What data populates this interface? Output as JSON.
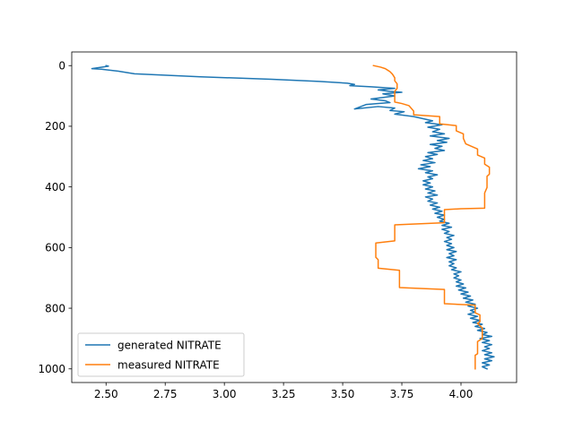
{
  "chart_data": {
    "type": "line",
    "title": "",
    "xlabel": "",
    "ylabel": "",
    "xlim": [
      2.355,
      4.235
    ],
    "ylim": [
      1045,
      -45
    ],
    "y_inverted": true,
    "grid": false,
    "legend_location": "lower-left",
    "x_ticks": [
      2.5,
      2.75,
      3.0,
      3.25,
      3.5,
      3.75,
      4.0
    ],
    "x_tick_labels": [
      "2.50",
      "2.75",
      "3.00",
      "3.25",
      "3.50",
      "3.75",
      "4.00"
    ],
    "y_ticks": [
      0,
      200,
      400,
      600,
      800,
      1000
    ],
    "y_tick_labels": [
      "0",
      "200",
      "400",
      "600",
      "800",
      "1000"
    ],
    "series": [
      {
        "name": "generated NITRATE",
        "color": "#1f77b4",
        "points": [
          [
            2.5,
            0
          ],
          [
            2.51,
            2
          ],
          [
            2.44,
            10
          ],
          [
            2.48,
            12
          ],
          [
            2.55,
            18
          ],
          [
            2.62,
            27
          ],
          [
            2.9,
            37
          ],
          [
            3.2,
            45
          ],
          [
            3.4,
            52
          ],
          [
            3.52,
            58
          ],
          [
            3.55,
            62
          ],
          [
            3.53,
            66
          ],
          [
            3.62,
            70
          ],
          [
            3.72,
            75
          ],
          [
            3.65,
            80
          ],
          [
            3.7,
            85
          ],
          [
            3.75,
            88
          ],
          [
            3.67,
            93
          ],
          [
            3.72,
            100
          ],
          [
            3.62,
            110
          ],
          [
            3.68,
            116
          ],
          [
            3.7,
            122
          ],
          [
            3.6,
            128
          ],
          [
            3.55,
            143
          ],
          [
            3.65,
            135
          ],
          [
            3.72,
            140
          ],
          [
            3.7,
            148
          ],
          [
            3.76,
            152
          ],
          [
            3.72,
            160
          ],
          [
            3.8,
            168
          ],
          [
            3.84,
            175
          ],
          [
            3.88,
            182
          ],
          [
            3.85,
            188
          ],
          [
            3.92,
            195
          ],
          [
            3.86,
            203
          ],
          [
            3.91,
            210
          ],
          [
            3.88,
            218
          ],
          [
            3.93,
            225
          ],
          [
            3.87,
            232
          ],
          [
            3.95,
            240
          ],
          [
            3.9,
            247
          ],
          [
            3.94,
            253
          ],
          [
            3.87,
            260
          ],
          [
            3.92,
            266
          ],
          [
            3.89,
            273
          ],
          [
            3.93,
            280
          ],
          [
            3.86,
            287
          ],
          [
            3.9,
            293
          ],
          [
            3.85,
            300
          ],
          [
            3.88,
            307
          ],
          [
            3.84,
            313
          ],
          [
            3.89,
            320
          ],
          [
            3.83,
            327
          ],
          [
            3.87,
            333
          ],
          [
            3.82,
            340
          ],
          [
            3.88,
            347
          ],
          [
            3.85,
            353
          ],
          [
            3.9,
            360
          ],
          [
            3.86,
            367
          ],
          [
            3.88,
            373
          ],
          [
            3.84,
            380
          ],
          [
            3.87,
            387
          ],
          [
            3.84,
            393
          ],
          [
            3.88,
            400
          ],
          [
            3.85,
            407
          ],
          [
            3.89,
            413
          ],
          [
            3.86,
            420
          ],
          [
            3.9,
            427
          ],
          [
            3.85,
            433
          ],
          [
            3.88,
            440
          ],
          [
            3.86,
            447
          ],
          [
            3.9,
            453
          ],
          [
            3.87,
            460
          ],
          [
            3.91,
            467
          ],
          [
            3.88,
            473
          ],
          [
            3.92,
            480
          ],
          [
            3.89,
            487
          ],
          [
            3.93,
            493
          ],
          [
            3.9,
            500
          ],
          [
            3.93,
            507
          ],
          [
            3.91,
            513
          ],
          [
            3.95,
            520
          ],
          [
            3.92,
            527
          ],
          [
            3.96,
            533
          ],
          [
            3.92,
            540
          ],
          [
            3.95,
            547
          ],
          [
            3.93,
            553
          ],
          [
            3.97,
            560
          ],
          [
            3.94,
            567
          ],
          [
            3.96,
            573
          ],
          [
            3.93,
            580
          ],
          [
            3.96,
            587
          ],
          [
            3.94,
            593
          ],
          [
            3.97,
            600
          ],
          [
            3.94,
            607
          ],
          [
            3.98,
            613
          ],
          [
            3.95,
            620
          ],
          [
            3.97,
            627
          ],
          [
            3.94,
            633
          ],
          [
            3.98,
            640
          ],
          [
            3.95,
            647
          ],
          [
            3.97,
            653
          ],
          [
            3.95,
            660
          ],
          [
            3.98,
            667
          ],
          [
            3.96,
            673
          ],
          [
            4.0,
            680
          ],
          [
            3.97,
            687
          ],
          [
            3.99,
            693
          ],
          [
            3.97,
            700
          ],
          [
            4.0,
            707
          ],
          [
            3.98,
            713
          ],
          [
            4.01,
            720
          ],
          [
            3.98,
            727
          ],
          [
            4.02,
            733
          ],
          [
            3.99,
            740
          ],
          [
            4.03,
            747
          ],
          [
            4.0,
            753
          ],
          [
            4.04,
            760
          ],
          [
            4.01,
            767
          ],
          [
            4.05,
            773
          ],
          [
            4.02,
            780
          ],
          [
            4.06,
            787
          ],
          [
            4.03,
            793
          ],
          [
            4.07,
            800
          ],
          [
            4.04,
            807
          ],
          [
            4.06,
            813
          ],
          [
            4.03,
            820
          ],
          [
            4.07,
            827
          ],
          [
            4.04,
            833
          ],
          [
            4.08,
            840
          ],
          [
            4.05,
            847
          ],
          [
            4.09,
            853
          ],
          [
            4.06,
            860
          ],
          [
            4.1,
            867
          ],
          [
            4.07,
            873
          ],
          [
            4.11,
            880
          ],
          [
            4.09,
            887
          ],
          [
            4.13,
            893
          ],
          [
            4.08,
            900
          ],
          [
            4.12,
            907
          ],
          [
            4.09,
            913
          ],
          [
            4.13,
            920
          ],
          [
            4.1,
            927
          ],
          [
            4.12,
            933
          ],
          [
            4.09,
            940
          ],
          [
            4.13,
            947
          ],
          [
            4.1,
            953
          ],
          [
            4.14,
            960
          ],
          [
            4.1,
            967
          ],
          [
            4.13,
            973
          ],
          [
            4.09,
            980
          ],
          [
            4.12,
            987
          ],
          [
            4.09,
            993
          ],
          [
            4.11,
            1000
          ]
        ]
      },
      {
        "name": "measured NITRATE",
        "color": "#ff7f0e",
        "points": [
          [
            3.63,
            0
          ],
          [
            3.66,
            5
          ],
          [
            3.68,
            10
          ],
          [
            3.69,
            15
          ],
          [
            3.7,
            20
          ],
          [
            3.71,
            28
          ],
          [
            3.72,
            40
          ],
          [
            3.72,
            50
          ],
          [
            3.73,
            60
          ],
          [
            3.73,
            75
          ],
          [
            3.72,
            85
          ],
          [
            3.72,
            100
          ],
          [
            3.72,
            110
          ],
          [
            3.72,
            120
          ],
          [
            3.75,
            125
          ],
          [
            3.78,
            132
          ],
          [
            3.8,
            150
          ],
          [
            3.8,
            162
          ],
          [
            3.91,
            168
          ],
          [
            3.91,
            192
          ],
          [
            3.98,
            198
          ],
          [
            3.98,
            215
          ],
          [
            4.01,
            225
          ],
          [
            4.01,
            240
          ],
          [
            4.02,
            258
          ],
          [
            4.07,
            275
          ],
          [
            4.07,
            295
          ],
          [
            4.1,
            305
          ],
          [
            4.1,
            325
          ],
          [
            4.12,
            335
          ],
          [
            4.12,
            358
          ],
          [
            4.11,
            365
          ],
          [
            4.11,
            402
          ],
          [
            4.1,
            420
          ],
          [
            4.1,
            470
          ],
          [
            4.0,
            472
          ],
          [
            3.93,
            475
          ],
          [
            3.93,
            518
          ],
          [
            3.72,
            525
          ],
          [
            3.72,
            578
          ],
          [
            3.64,
            585
          ],
          [
            3.64,
            632
          ],
          [
            3.65,
            640
          ],
          [
            3.65,
            668
          ],
          [
            3.74,
            675
          ],
          [
            3.74,
            732
          ],
          [
            3.93,
            738
          ],
          [
            3.93,
            785
          ],
          [
            4.06,
            790
          ],
          [
            4.06,
            815
          ],
          [
            4.08,
            822
          ],
          [
            4.08,
            845
          ],
          [
            4.07,
            850
          ],
          [
            4.09,
            865
          ],
          [
            4.09,
            900
          ],
          [
            4.07,
            910
          ],
          [
            4.07,
            950
          ],
          [
            4.06,
            955
          ],
          [
            4.06,
            1000
          ]
        ]
      }
    ]
  }
}
